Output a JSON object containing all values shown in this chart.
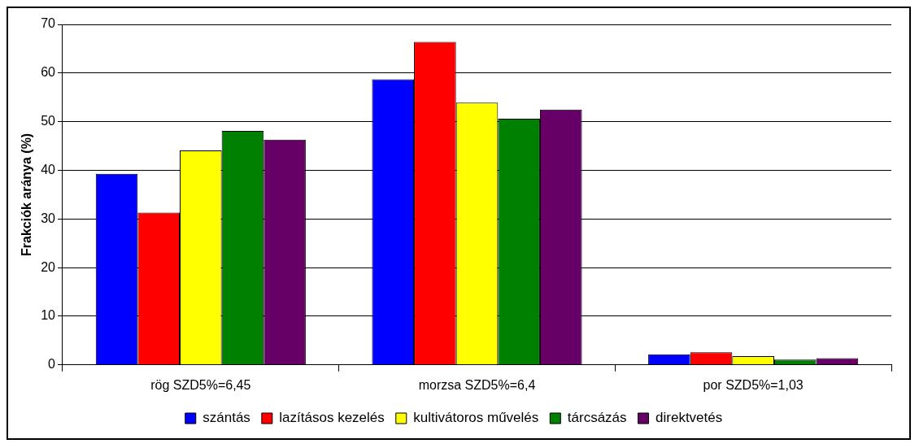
{
  "chart_data": {
    "type": "bar",
    "ylabel": "Frakciók aránya (%)",
    "categories": [
      "rög SZD5%=6,45",
      "morzsa SZD5%=6,4",
      "por SZD5%=1,03"
    ],
    "series": [
      {
        "name": "szántás",
        "color": "#0000ff",
        "values": [
          39.3,
          58.7,
          2.2
        ]
      },
      {
        "name": "lazításos kezelés",
        "color": "#ff0000",
        "values": [
          31.3,
          66.4,
          2.6
        ]
      },
      {
        "name": "kultivátoros művelés",
        "color": "#ffff00",
        "values": [
          44.1,
          53.9,
          1.8
        ]
      },
      {
        "name": "tárcsázás",
        "color": "#008000",
        "values": [
          48.1,
          50.6,
          1.1
        ]
      },
      {
        "name": "direktvetés",
        "color": "#660066",
        "values": [
          46.3,
          52.5,
          1.4
        ]
      }
    ],
    "ylim": [
      0,
      70
    ],
    "yticks": [
      0,
      10,
      20,
      30,
      40,
      50,
      60,
      70
    ],
    "grid": "y",
    "legend": "bottom"
  }
}
